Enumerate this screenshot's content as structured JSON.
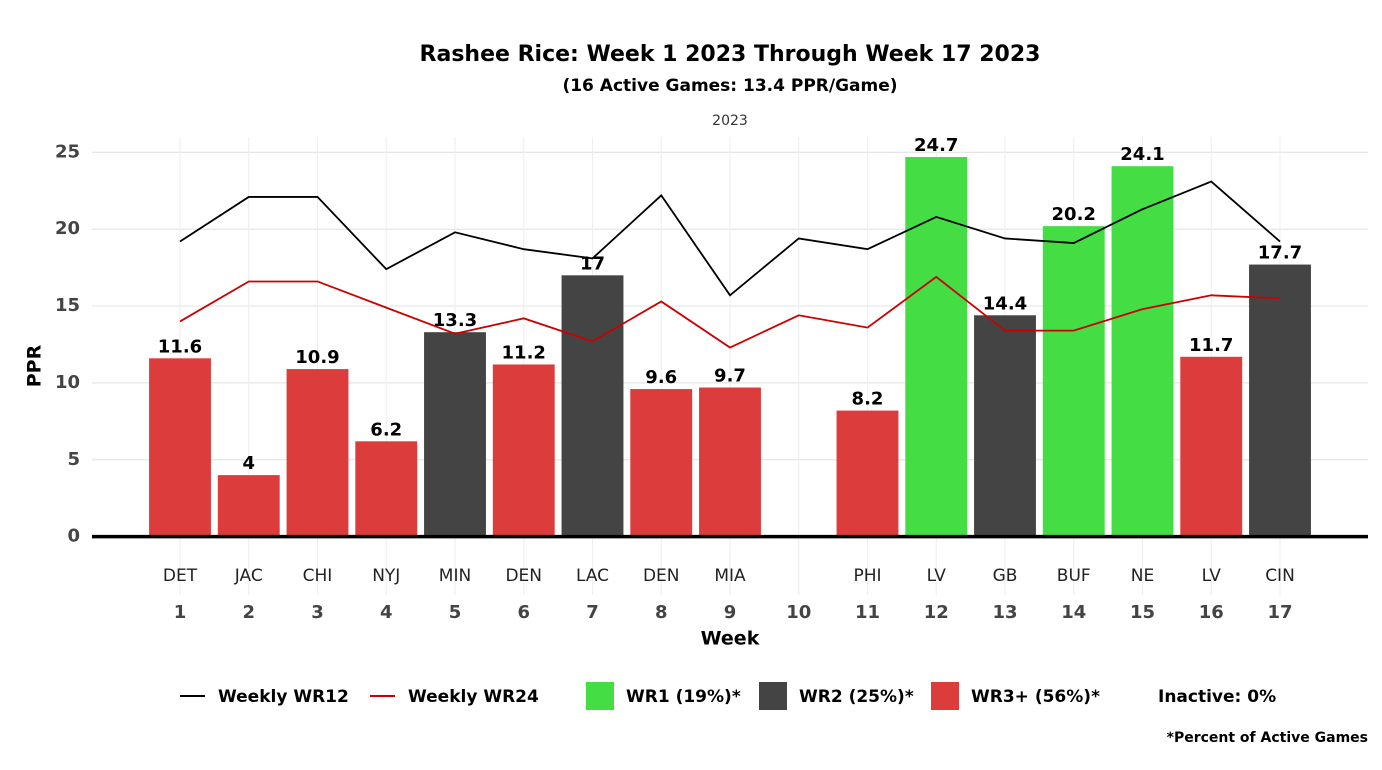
{
  "chart_data": {
    "type": "bar",
    "title": "Rashee Rice: Week 1 2023 Through Week 17 2023",
    "subtitle": "(16 Active Games: 13.4 PPR/Game)",
    "panel_label": "2023",
    "x_label": "Week",
    "y_label": "PPR",
    "x": [
      1,
      2,
      3,
      4,
      5,
      6,
      7,
      8,
      9,
      10,
      11,
      12,
      13,
      14,
      15,
      16,
      17
    ],
    "categories": [
      "DET",
      "JAC",
      "CHI",
      "NYJ",
      "MIN",
      "DEN",
      "LAC",
      "DEN",
      "MIA",
      null,
      "PHI",
      "LV",
      "GB",
      "BUF",
      "NE",
      "LV",
      "CIN"
    ],
    "values": [
      11.6,
      4,
      10.9,
      6.2,
      13.3,
      11.2,
      17,
      9.6,
      9.7,
      null,
      8.2,
      24.7,
      14.4,
      20.2,
      24.1,
      11.7,
      17.7
    ],
    "bar_colors": [
      "#dd3c3c",
      "#dd3c3c",
      "#dd3c3c",
      "#dd3c3c",
      "#444444",
      "#dd3c3c",
      "#444444",
      "#dd3c3c",
      "#dd3c3c",
      null,
      "#dd3c3c",
      "#44dd44",
      "#444444",
      "#44dd44",
      "#44dd44",
      "#dd3c3c",
      "#444444"
    ],
    "series": [
      {
        "name": "Weekly WR12",
        "color": "#000000",
        "values": [
          19.2,
          22.1,
          22.1,
          17.4,
          19.8,
          18.7,
          18.1,
          22.2,
          15.7,
          19.4,
          18.7,
          20.8,
          19.4,
          19.1,
          21.3,
          23.1,
          19.2
        ]
      },
      {
        "name": "Weekly WR24",
        "color": "#cc0000",
        "values": [
          14.0,
          16.6,
          16.6,
          14.9,
          13.2,
          14.2,
          12.7,
          15.3,
          12.3,
          14.4,
          13.6,
          16.9,
          13.4,
          13.4,
          14.8,
          15.7,
          15.5
        ]
      }
    ],
    "legend_boxes": [
      {
        "name": "WR1 (19%)*",
        "color": "#44dd44"
      },
      {
        "name": "WR2 (25%)*",
        "color": "#444444"
      },
      {
        "name": "WR3+ (56%)*",
        "color": "#dd3c3c"
      }
    ],
    "inactive_note": "Inactive: 0%",
    "footnote": "*Percent of Active Games",
    "xlim": [
      -0.28,
      18.28
    ],
    "xticks": [
      1,
      2,
      3,
      4,
      5,
      6,
      7,
      8,
      9,
      10,
      11,
      12,
      13,
      14,
      15,
      16,
      17
    ],
    "ylim": [
      -3.8,
      26
    ],
    "yticks": [
      0,
      5,
      10,
      15,
      20,
      25
    ],
    "grid": true
  }
}
